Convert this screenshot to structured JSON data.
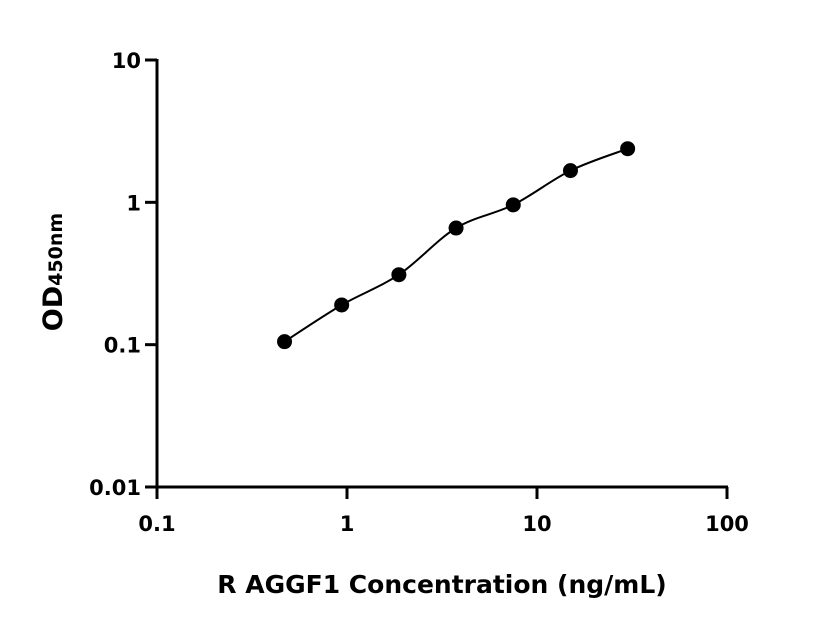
{
  "chart_data": {
    "type": "scatter",
    "title": "",
    "xlabel": "R AGGF1 Concentration (ng/mL)",
    "ylabel_main": "OD",
    "ylabel_sub": "450nm",
    "x_scale": "log",
    "y_scale": "log",
    "xlim": [
      0.1,
      100
    ],
    "ylim": [
      0.01,
      10
    ],
    "x_ticks": [
      "0.1",
      "1",
      "10",
      "100"
    ],
    "y_ticks": [
      "0.01",
      "0.1",
      "1",
      "10"
    ],
    "grid": false,
    "fit_curve": true,
    "marker_color": "#000000",
    "points": [
      {
        "x": 0.469,
        "y": 0.105
      },
      {
        "x": 0.9375,
        "y": 0.19
      },
      {
        "x": 1.875,
        "y": 0.31
      },
      {
        "x": 3.75,
        "y": 0.66
      },
      {
        "x": 7.5,
        "y": 0.96
      },
      {
        "x": 15,
        "y": 1.67
      },
      {
        "x": 30,
        "y": 2.38
      }
    ]
  }
}
